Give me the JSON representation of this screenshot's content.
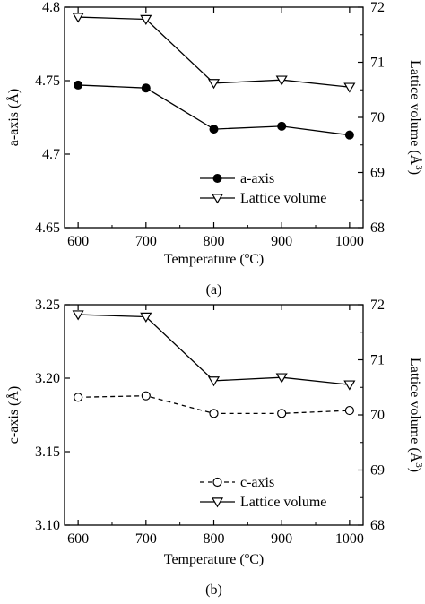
{
  "chart_data": [
    {
      "type": "line",
      "caption": "(a)",
      "x": [
        600,
        700,
        800,
        900,
        1000
      ],
      "xlabel": "Temperature (",
      "xlabel_sup": "o",
      "xlabel_end": "C)",
      "xlim": [
        580,
        1020
      ],
      "xticks": [
        "600",
        "700",
        "800",
        "900",
        "1000"
      ],
      "ylabel_left": "a-axis (Å)",
      "ylim_left": [
        4.65,
        4.8
      ],
      "yticks_left": [
        "4.65",
        "4.7",
        "4.75",
        "4.8"
      ],
      "ylabel_right": "Lattice volume (Å",
      "ylabel_right_sup": "3",
      "ylabel_right_end": ")",
      "ylim_right": [
        68,
        72
      ],
      "yticks_right": [
        "68",
        "69",
        "70",
        "71",
        "72"
      ],
      "legend_position": "lower-right",
      "series": [
        {
          "name": "a-axis",
          "axis": "left",
          "marker": "filled-circle",
          "line": "solid",
          "values": [
            4.747,
            4.745,
            4.717,
            4.719,
            4.713
          ]
        },
        {
          "name": "Lattice volume",
          "axis": "right",
          "marker": "open-triangle-down",
          "line": "solid",
          "values": [
            71.82,
            71.78,
            70.62,
            70.68,
            70.55
          ]
        }
      ]
    },
    {
      "type": "line",
      "caption": "(b)",
      "x": [
        600,
        700,
        800,
        900,
        1000
      ],
      "xlabel": "Temperature (",
      "xlabel_sup": "o",
      "xlabel_end": "C)",
      "xlim": [
        580,
        1020
      ],
      "xticks": [
        "600",
        "700",
        "800",
        "900",
        "1000"
      ],
      "ylabel_left": "c-axis (Å)",
      "ylim_left": [
        3.1,
        3.25
      ],
      "yticks_left": [
        "3.10",
        "3.15",
        "3.20",
        "3.25"
      ],
      "ylabel_right": "Lattice volume (Å",
      "ylabel_right_sup": "3",
      "ylabel_right_end": ")",
      "ylim_right": [
        68,
        72
      ],
      "yticks_right": [
        "68",
        "69",
        "70",
        "71",
        "72"
      ],
      "legend_position": "lower-right",
      "series": [
        {
          "name": "c-axis",
          "axis": "left",
          "marker": "open-circle",
          "line": "dashed",
          "values": [
            3.187,
            3.188,
            3.176,
            3.176,
            3.178
          ]
        },
        {
          "name": "Lattice volume",
          "axis": "right",
          "marker": "open-triangle-down",
          "line": "solid",
          "values": [
            71.82,
            71.78,
            70.62,
            70.68,
            70.55
          ]
        }
      ]
    }
  ]
}
